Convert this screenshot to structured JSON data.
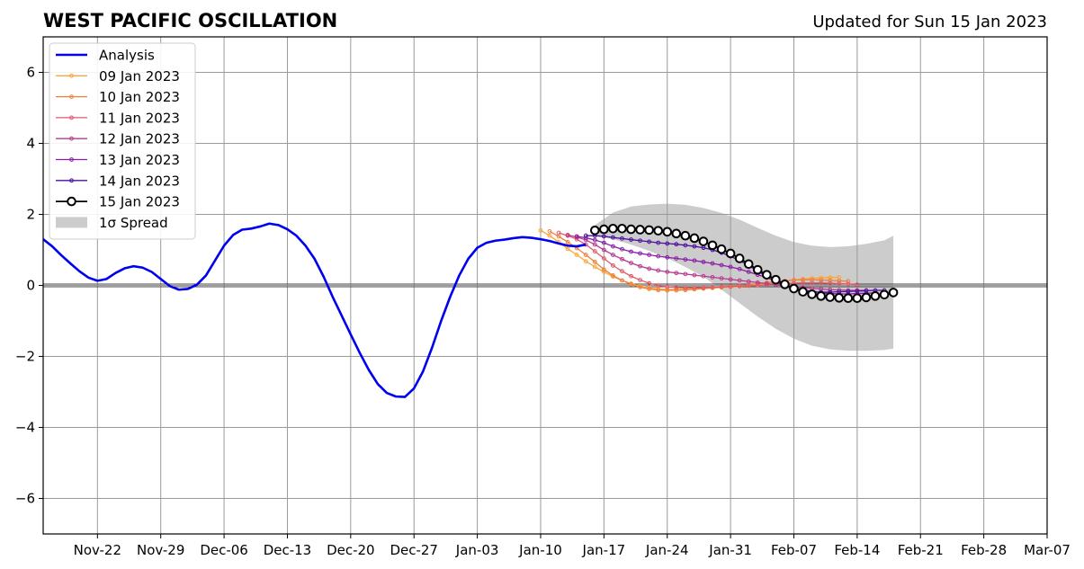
{
  "title": "WEST PACIFIC OSCILLATION",
  "subtitle": "Updated for Sun 15 Jan 2023",
  "chart_data": {
    "type": "line",
    "title": "WEST PACIFIC OSCILLATION",
    "subtitle": "Updated for Sun 15 Jan 2023",
    "xlabel": "",
    "ylabel": "",
    "x_axis": {
      "type": "date",
      "xlim": [
        "2022-11-16",
        "2023-03-07"
      ]
    },
    "ylim": [
      -7,
      7
    ],
    "grid": true,
    "zero_line": true,
    "legend_position": "top-left",
    "xtick_dates": [
      "2022-11-22",
      "2022-11-29",
      "2022-12-06",
      "2022-12-13",
      "2022-12-20",
      "2022-12-27",
      "2023-01-03",
      "2023-01-10",
      "2023-01-17",
      "2023-01-24",
      "2023-01-31",
      "2023-02-07",
      "2023-02-14",
      "2023-02-21",
      "2023-02-28",
      "2023-03-07"
    ],
    "xtick_labels": [
      "Nov-22",
      "Nov-29",
      "Dec-06",
      "Dec-13",
      "Dec-20",
      "Dec-27",
      "Jan-03",
      "Jan-10",
      "Jan-17",
      "Jan-24",
      "Jan-31",
      "Feb-07",
      "Feb-14",
      "Feb-21",
      "Feb-28",
      "Mar-07"
    ],
    "ytick_values": [
      -6,
      -4,
      -2,
      0,
      2,
      4,
      6
    ],
    "ytick_labels": [
      "−6",
      "−4",
      "−2",
      "0",
      "2",
      "4",
      "6"
    ],
    "series": [
      {
        "name": "Analysis",
        "color": "#0000ee",
        "style": "analysis",
        "x": [
          "2022-11-16",
          "2022-11-17",
          "2022-11-18",
          "2022-11-19",
          "2022-11-20",
          "2022-11-21",
          "2022-11-22",
          "2022-11-23",
          "2022-11-24",
          "2022-11-25",
          "2022-11-26",
          "2022-11-27",
          "2022-11-28",
          "2022-11-29",
          "2022-11-30",
          "2022-12-01",
          "2022-12-02",
          "2022-12-03",
          "2022-12-04",
          "2022-12-05",
          "2022-12-06",
          "2022-12-07",
          "2022-12-08",
          "2022-12-09",
          "2022-12-10",
          "2022-12-11",
          "2022-12-12",
          "2022-12-13",
          "2022-12-14",
          "2022-12-15",
          "2022-12-16",
          "2022-12-17",
          "2022-12-18",
          "2022-12-19",
          "2022-12-20",
          "2022-12-21",
          "2022-12-22",
          "2022-12-23",
          "2022-12-24",
          "2022-12-25",
          "2022-12-26",
          "2022-12-27",
          "2022-12-28",
          "2022-12-29",
          "2022-12-30",
          "2022-12-31",
          "2023-01-01",
          "2023-01-02",
          "2023-01-03",
          "2023-01-04",
          "2023-01-05",
          "2023-01-06",
          "2023-01-07",
          "2023-01-08",
          "2023-01-09",
          "2023-01-10",
          "2023-01-11",
          "2023-01-12",
          "2023-01-13",
          "2023-01-14",
          "2023-01-15"
        ],
        "y": [
          1.3,
          1.1,
          0.85,
          0.62,
          0.4,
          0.22,
          0.13,
          0.18,
          0.35,
          0.48,
          0.54,
          0.5,
          0.38,
          0.18,
          -0.02,
          -0.12,
          -0.1,
          0.02,
          0.28,
          0.7,
          1.12,
          1.42,
          1.57,
          1.6,
          1.66,
          1.74,
          1.7,
          1.58,
          1.4,
          1.12,
          0.75,
          0.25,
          -0.32,
          -0.85,
          -1.38,
          -1.9,
          -2.38,
          -2.78,
          -3.03,
          -3.13,
          -3.14,
          -2.9,
          -2.42,
          -1.75,
          -1.0,
          -0.32,
          0.28,
          0.75,
          1.06,
          1.2,
          1.26,
          1.29,
          1.33,
          1.36,
          1.34,
          1.3,
          1.25,
          1.18,
          1.12,
          1.1,
          1.15
        ]
      },
      {
        "name": "09 Jan 2023",
        "color": "#f7a839",
        "style": "forecast",
        "x": [
          "2023-01-10",
          "2023-01-11",
          "2023-01-12",
          "2023-01-13",
          "2023-01-14",
          "2023-01-15",
          "2023-01-16",
          "2023-01-17",
          "2023-01-18",
          "2023-01-19",
          "2023-01-20",
          "2023-01-21",
          "2023-01-22",
          "2023-01-23",
          "2023-01-24",
          "2023-01-25",
          "2023-01-26",
          "2023-01-27",
          "2023-01-28",
          "2023-01-29",
          "2023-01-30",
          "2023-01-31",
          "2023-02-01",
          "2023-02-02",
          "2023-02-03",
          "2023-02-04",
          "2023-02-05",
          "2023-02-06",
          "2023-02-07",
          "2023-02-08",
          "2023-02-09",
          "2023-02-10",
          "2023-02-11",
          "2023-02-12"
        ],
        "y": [
          1.55,
          1.4,
          1.22,
          1.03,
          0.86,
          0.68,
          0.52,
          0.38,
          0.25,
          0.14,
          0.05,
          -0.02,
          -0.07,
          -0.1,
          -0.11,
          -0.11,
          -0.1,
          -0.09,
          -0.08,
          -0.07,
          -0.06,
          -0.05,
          -0.03,
          -0.01,
          0.02,
          0.05,
          0.08,
          0.12,
          0.15,
          0.18,
          0.2,
          0.21,
          0.22,
          0.23
        ]
      },
      {
        "name": "10 Jan 2023",
        "color": "#ef7f3d",
        "style": "forecast",
        "x": [
          "2023-01-11",
          "2023-01-12",
          "2023-01-13",
          "2023-01-14",
          "2023-01-15",
          "2023-01-16",
          "2023-01-17",
          "2023-01-18",
          "2023-01-19",
          "2023-01-20",
          "2023-01-21",
          "2023-01-22",
          "2023-01-23",
          "2023-01-24",
          "2023-01-25",
          "2023-01-26",
          "2023-01-27",
          "2023-01-28",
          "2023-01-29",
          "2023-01-30",
          "2023-01-31",
          "2023-02-01",
          "2023-02-02",
          "2023-02-03",
          "2023-02-04",
          "2023-02-05",
          "2023-02-06",
          "2023-02-07",
          "2023-02-08",
          "2023-02-09",
          "2023-02-10",
          "2023-02-11",
          "2023-02-12",
          "2023-02-13"
        ],
        "y": [
          1.52,
          1.38,
          1.22,
          1.05,
          0.86,
          0.66,
          0.45,
          0.28,
          0.14,
          0.03,
          -0.05,
          -0.1,
          -0.13,
          -0.14,
          -0.14,
          -0.13,
          -0.11,
          -0.09,
          -0.07,
          -0.05,
          -0.03,
          -0.01,
          0.02,
          0.05,
          0.08,
          0.11,
          0.13,
          0.15,
          0.16,
          0.16,
          0.15,
          0.14,
          0.13,
          0.12
        ]
      },
      {
        "name": "11 Jan 2023",
        "color": "#df5a6a",
        "style": "forecast",
        "x": [
          "2023-01-12",
          "2023-01-13",
          "2023-01-14",
          "2023-01-15",
          "2023-01-16",
          "2023-01-17",
          "2023-01-18",
          "2023-01-19",
          "2023-01-20",
          "2023-01-21",
          "2023-01-22",
          "2023-01-23",
          "2023-01-24",
          "2023-01-25",
          "2023-01-26",
          "2023-01-27",
          "2023-01-28",
          "2023-01-29",
          "2023-01-30",
          "2023-01-31",
          "2023-02-01",
          "2023-02-02",
          "2023-02-03",
          "2023-02-04",
          "2023-02-05",
          "2023-02-06",
          "2023-02-07",
          "2023-02-08",
          "2023-02-09",
          "2023-02-10",
          "2023-02-11",
          "2023-02-12",
          "2023-02-13",
          "2023-02-14"
        ],
        "y": [
          1.48,
          1.4,
          1.3,
          1.15,
          0.96,
          0.76,
          0.56,
          0.4,
          0.26,
          0.15,
          0.06,
          0.0,
          -0.04,
          -0.06,
          -0.07,
          -0.07,
          -0.06,
          -0.05,
          -0.04,
          -0.03,
          -0.02,
          -0.01,
          0.0,
          0.02,
          0.04,
          0.05,
          0.06,
          0.07,
          0.07,
          0.07,
          0.06,
          0.05,
          0.04,
          0.02
        ]
      },
      {
        "name": "12 Jan 2023",
        "color": "#b83a8c",
        "style": "forecast",
        "x": [
          "2023-01-13",
          "2023-01-14",
          "2023-01-15",
          "2023-01-16",
          "2023-01-17",
          "2023-01-18",
          "2023-01-19",
          "2023-01-20",
          "2023-01-21",
          "2023-01-22",
          "2023-01-23",
          "2023-01-24",
          "2023-01-25",
          "2023-01-26",
          "2023-01-27",
          "2023-01-28",
          "2023-01-29",
          "2023-01-30",
          "2023-01-31",
          "2023-02-01",
          "2023-02-02",
          "2023-02-03",
          "2023-02-04",
          "2023-02-05",
          "2023-02-06",
          "2023-02-07",
          "2023-02-08",
          "2023-02-09",
          "2023-02-10",
          "2023-02-11",
          "2023-02-12",
          "2023-02-13",
          "2023-02-14",
          "2023-02-15"
        ],
        "y": [
          1.42,
          1.36,
          1.28,
          1.15,
          1.0,
          0.86,
          0.74,
          0.63,
          0.54,
          0.47,
          0.42,
          0.38,
          0.35,
          0.32,
          0.29,
          0.26,
          0.23,
          0.2,
          0.17,
          0.14,
          0.11,
          0.08,
          0.05,
          0.02,
          -0.01,
          -0.04,
          -0.06,
          -0.08,
          -0.1,
          -0.12,
          -0.13,
          -0.14,
          -0.14,
          -0.14
        ]
      },
      {
        "name": "13 Jan 2023",
        "color": "#8a1ea8",
        "style": "forecast",
        "x": [
          "2023-01-14",
          "2023-01-15",
          "2023-01-16",
          "2023-01-17",
          "2023-01-18",
          "2023-01-19",
          "2023-01-20",
          "2023-01-21",
          "2023-01-22",
          "2023-01-23",
          "2023-01-24",
          "2023-01-25",
          "2023-01-26",
          "2023-01-27",
          "2023-01-28",
          "2023-01-29",
          "2023-01-30",
          "2023-01-31",
          "2023-02-01",
          "2023-02-02",
          "2023-02-03",
          "2023-02-04",
          "2023-02-05",
          "2023-02-06",
          "2023-02-07",
          "2023-02-08",
          "2023-02-09",
          "2023-02-10",
          "2023-02-11",
          "2023-02-12",
          "2023-02-13",
          "2023-02-14",
          "2023-02-15",
          "2023-02-16"
        ],
        "y": [
          1.38,
          1.34,
          1.28,
          1.2,
          1.1,
          1.02,
          0.95,
          0.9,
          0.86,
          0.82,
          0.79,
          0.76,
          0.73,
          0.7,
          0.66,
          0.62,
          0.57,
          0.52,
          0.46,
          0.38,
          0.3,
          0.22,
          0.12,
          0.03,
          -0.05,
          -0.12,
          -0.17,
          -0.21,
          -0.23,
          -0.24,
          -0.24,
          -0.23,
          -0.22,
          -0.21
        ]
      },
      {
        "name": "14 Jan 2023",
        "color": "#4b0fa0",
        "style": "forecast",
        "x": [
          "2023-01-15",
          "2023-01-16",
          "2023-01-17",
          "2023-01-18",
          "2023-01-19",
          "2023-01-20",
          "2023-01-21",
          "2023-01-22",
          "2023-01-23",
          "2023-01-24",
          "2023-01-25",
          "2023-01-26",
          "2023-01-27",
          "2023-01-28",
          "2023-01-29",
          "2023-01-30",
          "2023-01-31",
          "2023-02-01",
          "2023-02-02",
          "2023-02-03",
          "2023-02-04",
          "2023-02-05",
          "2023-02-06",
          "2023-02-07",
          "2023-02-08",
          "2023-02-09",
          "2023-02-10",
          "2023-02-11",
          "2023-02-12",
          "2023-02-13",
          "2023-02-14",
          "2023-02-15",
          "2023-02-16",
          "2023-02-17"
        ],
        "y": [
          1.4,
          1.4,
          1.38,
          1.35,
          1.32,
          1.29,
          1.26,
          1.23,
          1.2,
          1.18,
          1.16,
          1.13,
          1.1,
          1.06,
          1.0,
          0.92,
          0.82,
          0.7,
          0.56,
          0.4,
          0.25,
          0.1,
          -0.02,
          -0.1,
          -0.15,
          -0.18,
          -0.19,
          -0.19,
          -0.18,
          -0.17,
          -0.16,
          -0.15,
          -0.14,
          -0.14
        ]
      },
      {
        "name": "15 Jan 2023",
        "color": "#000000",
        "style": "latest",
        "x": [
          "2023-01-16",
          "2023-01-17",
          "2023-01-18",
          "2023-01-19",
          "2023-01-20",
          "2023-01-21",
          "2023-01-22",
          "2023-01-23",
          "2023-01-24",
          "2023-01-25",
          "2023-01-26",
          "2023-01-27",
          "2023-01-28",
          "2023-01-29",
          "2023-01-30",
          "2023-01-31",
          "2023-02-01",
          "2023-02-02",
          "2023-02-03",
          "2023-02-04",
          "2023-02-05",
          "2023-02-06",
          "2023-02-07",
          "2023-02-08",
          "2023-02-09",
          "2023-02-10",
          "2023-02-11",
          "2023-02-12",
          "2023-02-13",
          "2023-02-14",
          "2023-02-15",
          "2023-02-16",
          "2023-02-17",
          "2023-02-18"
        ],
        "y": [
          1.55,
          1.58,
          1.6,
          1.6,
          1.58,
          1.57,
          1.56,
          1.54,
          1.51,
          1.46,
          1.4,
          1.33,
          1.24,
          1.13,
          1.02,
          0.9,
          0.76,
          0.6,
          0.44,
          0.3,
          0.16,
          0.03,
          -0.09,
          -0.18,
          -0.25,
          -0.3,
          -0.33,
          -0.35,
          -0.36,
          -0.36,
          -0.34,
          -0.3,
          -0.26,
          -0.2
        ]
      }
    ],
    "spread": {
      "name": "1σ Spread",
      "color": "#cccccc",
      "x": [
        "2023-01-16",
        "2023-01-18",
        "2023-01-20",
        "2023-01-22",
        "2023-01-24",
        "2023-01-26",
        "2023-01-28",
        "2023-01-30",
        "2023-02-01",
        "2023-02-03",
        "2023-02-05",
        "2023-02-07",
        "2023-02-09",
        "2023-02-11",
        "2023-02-13",
        "2023-02-15",
        "2023-02-17",
        "2023-02-18"
      ],
      "upper": [
        1.7,
        2.05,
        2.22,
        2.28,
        2.3,
        2.27,
        2.18,
        2.04,
        1.85,
        1.62,
        1.4,
        1.22,
        1.12,
        1.08,
        1.1,
        1.17,
        1.27,
        1.4
      ],
      "lower": [
        1.4,
        1.3,
        1.15,
        0.97,
        0.77,
        0.52,
        0.24,
        -0.12,
        -0.5,
        -0.88,
        -1.22,
        -1.5,
        -1.7,
        -1.8,
        -1.84,
        -1.84,
        -1.82,
        -1.78
      ]
    }
  }
}
